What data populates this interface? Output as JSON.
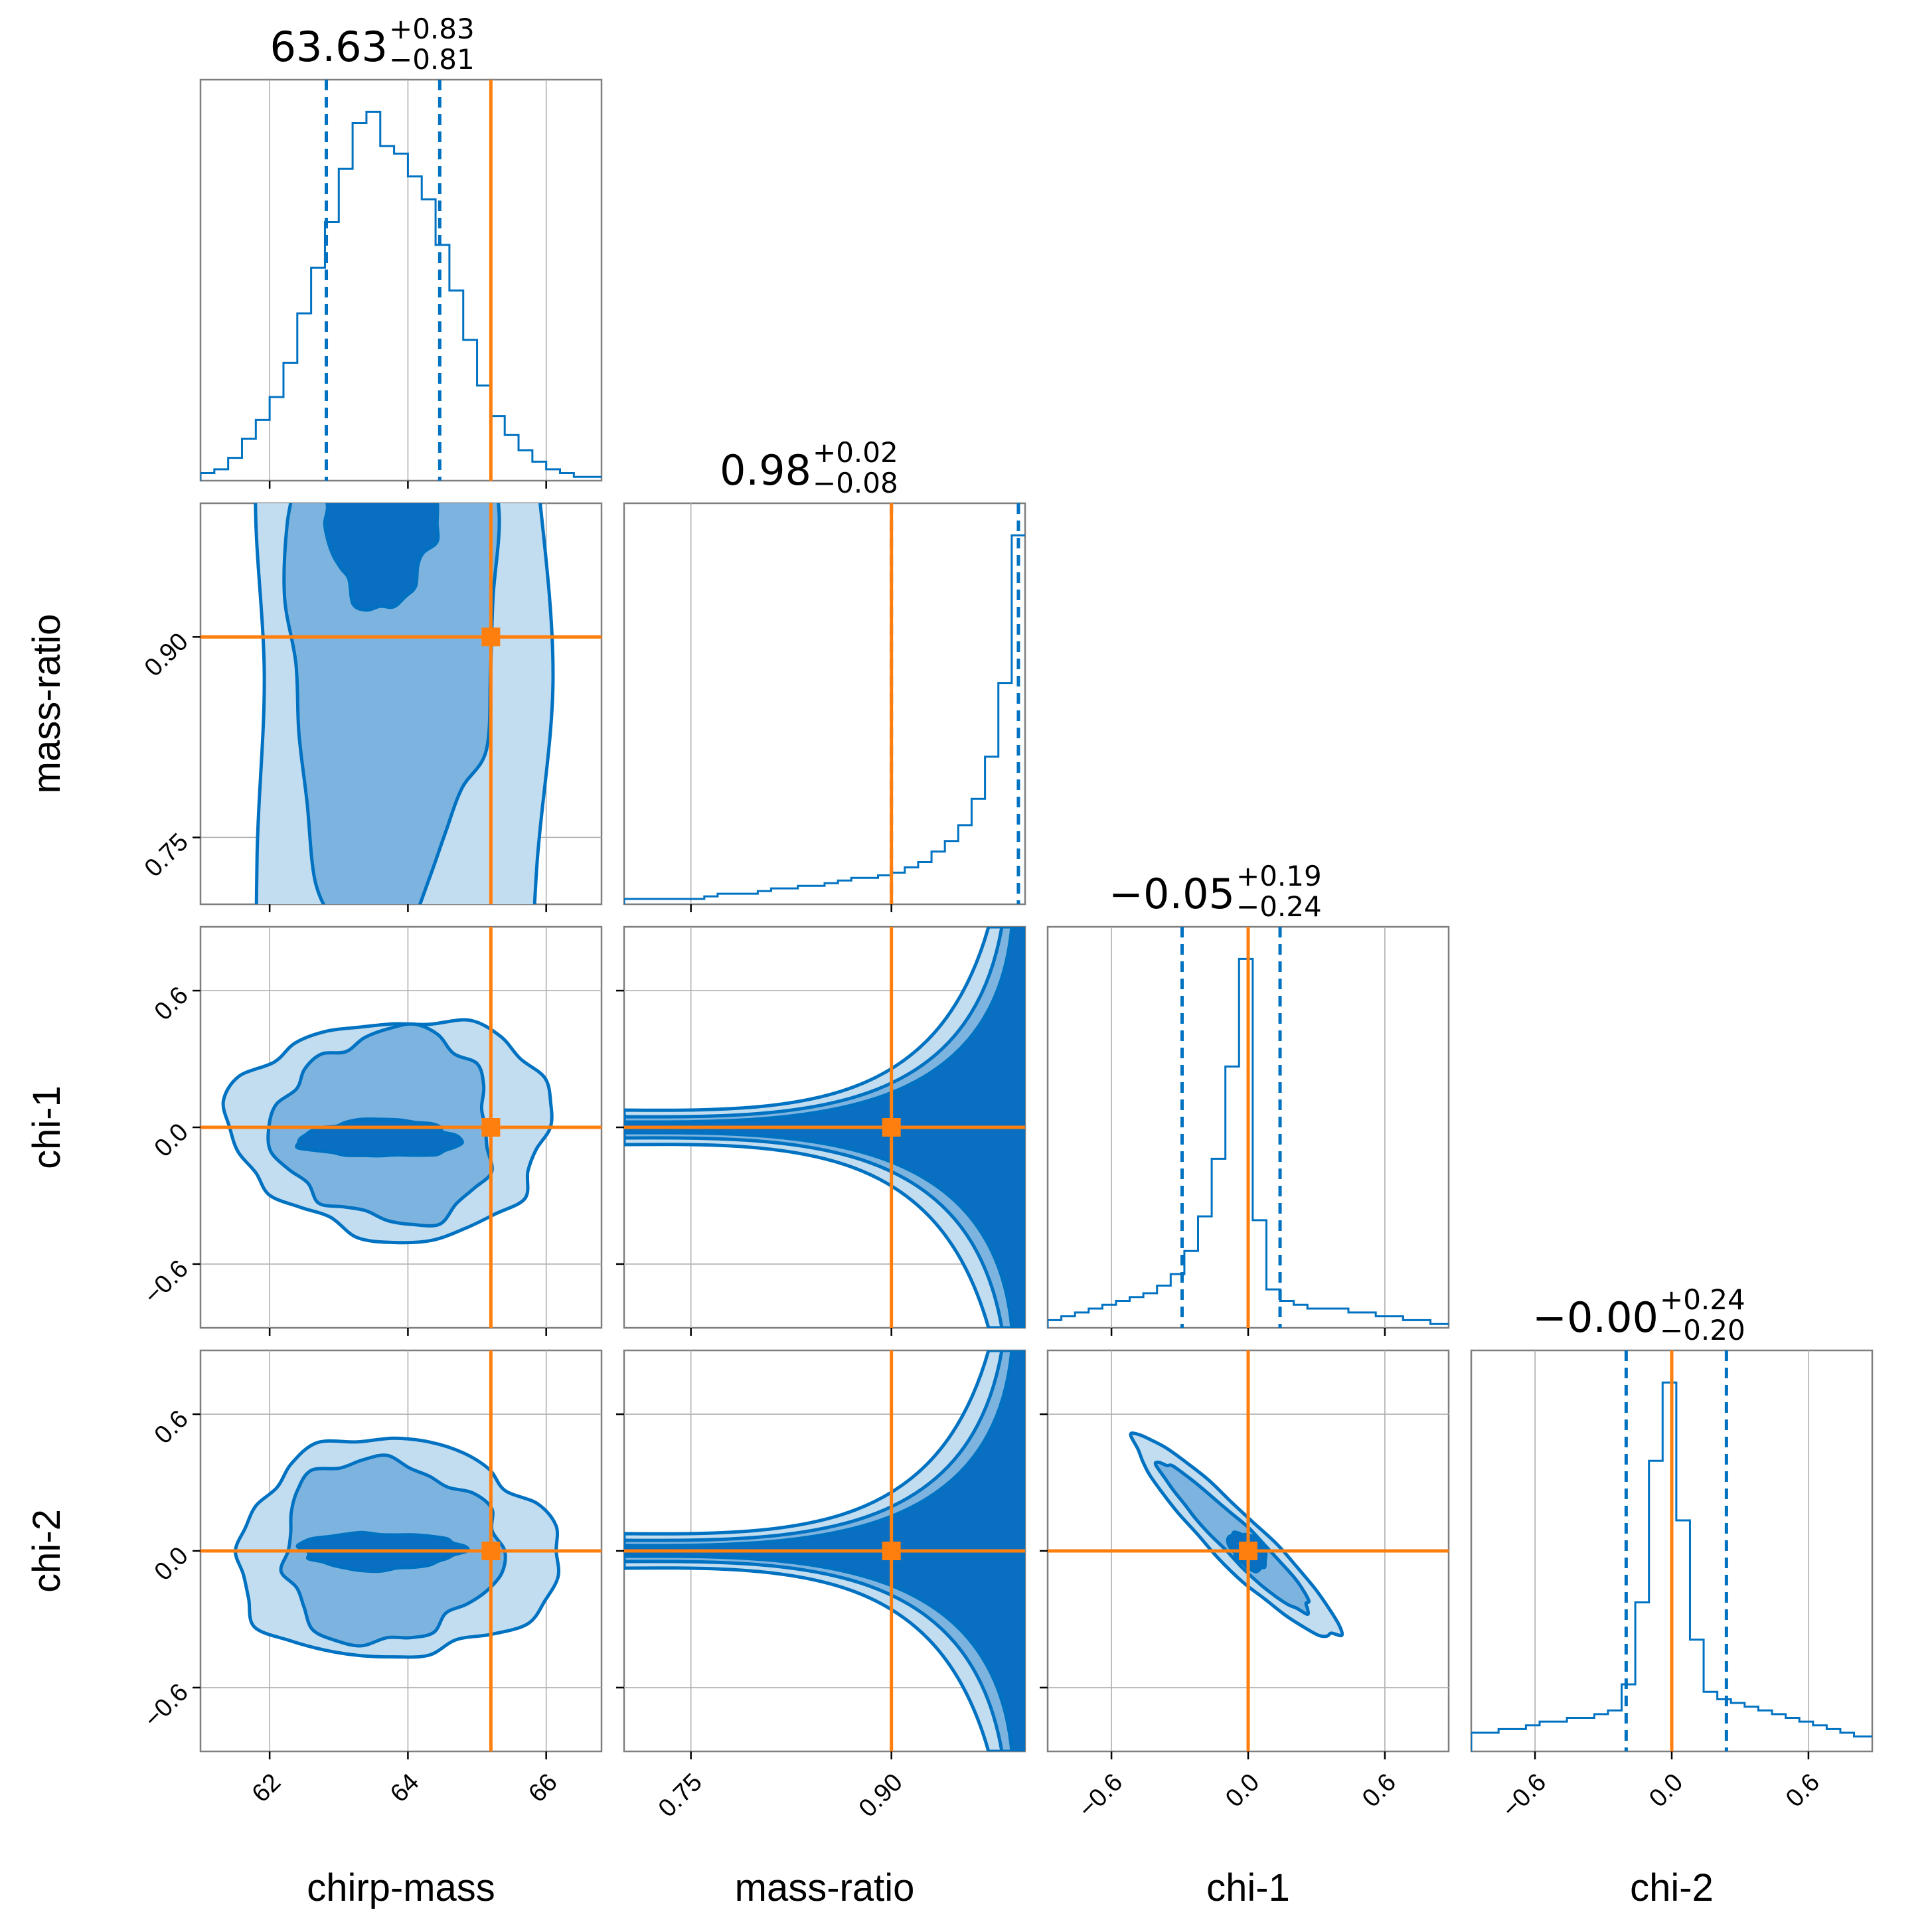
{
  "chart_data": {
    "type": "corner",
    "parameters": [
      "chirp-mass",
      "mass-ratio",
      "chi-1",
      "chi-2"
    ],
    "axis_ranges": {
      "chirp-mass": [
        61.0,
        66.8
      ],
      "mass-ratio": [
        0.7,
        1.0
      ],
      "chi-1": [
        -0.88,
        0.88
      ],
      "chi-2": [
        -0.88,
        0.88
      ]
    },
    "ticks": {
      "chirp-mass": [
        {
          "value": 62,
          "label": "62"
        },
        {
          "value": 64,
          "label": "64"
        },
        {
          "value": 66,
          "label": "66"
        }
      ],
      "mass-ratio": [
        {
          "value": 0.75,
          "label": "0.75"
        },
        {
          "value": 0.9,
          "label": "0.90"
        }
      ],
      "chi-1": [
        {
          "value": -0.6,
          "label": "−0.6"
        },
        {
          "value": 0.0,
          "label": "0.0"
        },
        {
          "value": 0.6,
          "label": "0.6"
        }
      ],
      "chi-2": [
        {
          "value": -0.6,
          "label": "−0.6"
        },
        {
          "value": 0.0,
          "label": "0.0"
        },
        {
          "value": 0.6,
          "label": "0.6"
        }
      ]
    },
    "truths": {
      "chirp-mass": 65.2,
      "mass-ratio": 0.9,
      "chi-1": 0.0,
      "chi-2": 0.0
    },
    "quantiles": {
      "chirp-mass": [
        62.82,
        64.46
      ],
      "mass-ratio": [
        0.9,
        0.995
      ],
      "chi-1": [
        -0.29,
        0.14
      ],
      "chi-2": [
        -0.2,
        0.24
      ]
    },
    "titles": [
      {
        "param": "chirp-mass",
        "value": "63.63",
        "upper": "+0.83",
        "lower": "−0.81"
      },
      {
        "param": "mass-ratio",
        "value": "0.98",
        "upper": "+0.02",
        "lower": "−0.08"
      },
      {
        "param": "chi-1",
        "value": "−0.05",
        "upper": "+0.19",
        "lower": "−0.24"
      },
      {
        "param": "chi-2",
        "value": "−0.00",
        "upper": "+0.24",
        "lower": "−0.20"
      }
    ],
    "histograms": {
      "chirp-mass": {
        "x": [
          61.0,
          61.2,
          61.4,
          61.6,
          61.8,
          62.0,
          62.2,
          62.4,
          62.6,
          62.8,
          63.0,
          63.2,
          63.4,
          63.6,
          63.8,
          64.0,
          64.2,
          64.4,
          64.6,
          64.8,
          65.0,
          65.2,
          65.4,
          65.6,
          65.8,
          66.0,
          66.2,
          66.4,
          66.6,
          66.8
        ],
        "density": [
          0.02,
          0.03,
          0.06,
          0.11,
          0.16,
          0.22,
          0.31,
          0.44,
          0.56,
          0.68,
          0.82,
          0.94,
          0.97,
          0.88,
          0.86,
          0.8,
          0.74,
          0.62,
          0.5,
          0.37,
          0.25,
          0.17,
          0.12,
          0.08,
          0.05,
          0.03,
          0.02,
          0.01,
          0.01
        ]
      },
      "mass-ratio": {
        "x": [
          0.7,
          0.71,
          0.72,
          0.73,
          0.74,
          0.75,
          0.76,
          0.77,
          0.78,
          0.79,
          0.8,
          0.81,
          0.82,
          0.83,
          0.84,
          0.85,
          0.86,
          0.87,
          0.88,
          0.89,
          0.9,
          0.91,
          0.92,
          0.93,
          0.94,
          0.95,
          0.96,
          0.97,
          0.98,
          0.99,
          1.0
        ],
        "density": [
          0.01,
          0.01,
          0.01,
          0.01,
          0.01,
          0.01,
          0.015,
          0.02,
          0.02,
          0.02,
          0.025,
          0.03,
          0.03,
          0.035,
          0.035,
          0.04,
          0.045,
          0.05,
          0.05,
          0.055,
          0.06,
          0.07,
          0.08,
          0.1,
          0.12,
          0.15,
          0.2,
          0.28,
          0.42,
          0.7
        ]
      },
      "chi-1": {
        "x": [
          -0.88,
          -0.82,
          -0.76,
          -0.7,
          -0.64,
          -0.58,
          -0.52,
          -0.46,
          -0.4,
          -0.34,
          -0.28,
          -0.22,
          -0.16,
          -0.1,
          -0.04,
          0.02,
          0.08,
          0.14,
          0.2,
          0.26,
          0.32,
          0.38,
          0.44,
          0.5,
          0.56,
          0.62,
          0.68,
          0.74,
          0.8,
          0.88
        ],
        "density": [
          0.02,
          0.03,
          0.04,
          0.05,
          0.06,
          0.07,
          0.08,
          0.09,
          0.11,
          0.14,
          0.2,
          0.29,
          0.44,
          0.68,
          0.96,
          0.28,
          0.1,
          0.07,
          0.06,
          0.05,
          0.05,
          0.05,
          0.04,
          0.04,
          0.03,
          0.03,
          0.02,
          0.02,
          0.01
        ]
      },
      "chi-2": {
        "x": [
          -0.88,
          -0.82,
          -0.76,
          -0.7,
          -0.64,
          -0.58,
          -0.52,
          -0.46,
          -0.4,
          -0.34,
          -0.28,
          -0.22,
          -0.16,
          -0.1,
          -0.04,
          0.02,
          0.08,
          0.14,
          0.2,
          0.26,
          0.32,
          0.38,
          0.44,
          0.5,
          0.56,
          0.62,
          0.68,
          0.74,
          0.8,
          0.88
        ],
        "density": [
          0.05,
          0.05,
          0.06,
          0.06,
          0.07,
          0.08,
          0.08,
          0.09,
          0.09,
          0.1,
          0.11,
          0.18,
          0.4,
          0.78,
          0.99,
          0.62,
          0.3,
          0.16,
          0.14,
          0.13,
          0.12,
          0.11,
          0.1,
          0.09,
          0.08,
          0.07,
          0.06,
          0.05,
          0.04
        ]
      }
    },
    "contour_levels": [
      "outer",
      "middle",
      "inner"
    ],
    "colors": {
      "posterior": "#0072c1",
      "truth": "#ff7f0e",
      "outer_fill": "#c2dcf0",
      "middle_fill": "#7db3df",
      "inner_fill": "#0a6fc0"
    }
  }
}
